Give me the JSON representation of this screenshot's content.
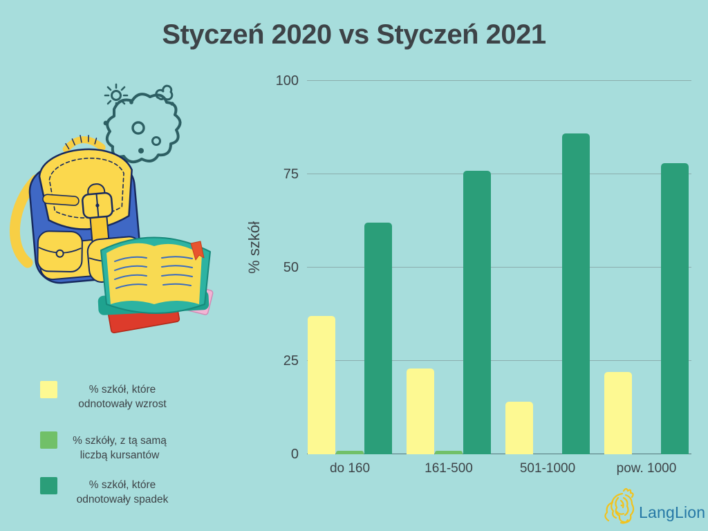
{
  "title": "Styczeń 2020 vs Styczeń 2021",
  "chart_data": {
    "type": "bar",
    "title": "Styczeń 2020 vs Styczeń 2021",
    "categories": [
      "do 160",
      "161-500",
      "501-1000",
      "pow. 1000"
    ],
    "series": [
      {
        "name": "% szkół, które odnotowały wzrost",
        "color": "#fdf992",
        "values": [
          37,
          23,
          14,
          22
        ]
      },
      {
        "name": "% szkóły, z tą samą liczbą kursantów",
        "color": "#71c068",
        "values": [
          1,
          1,
          0,
          0
        ]
      },
      {
        "name": "% szkół, które odnotowały spadek",
        "color": "#2b9e79",
        "values": [
          62,
          76,
          86,
          78
        ]
      }
    ],
    "xlabel": "",
    "ylabel": "% szkół",
    "ylim": [
      0,
      100
    ],
    "yticks": [
      0,
      25,
      50,
      75,
      100
    ],
    "grid": true,
    "legend_position": "bottom-left"
  },
  "legend": {
    "items": [
      {
        "color": "#fdf992",
        "lines": [
          "% szkół, które",
          "odnotowały wzrost"
        ]
      },
      {
        "color": "#71c068",
        "lines": [
          "% szkóły, z tą samą",
          "liczbą kursantów"
        ]
      },
      {
        "color": "#2b9e79",
        "lines": [
          "% szkół, które",
          "odnotowały spadek"
        ]
      }
    ]
  },
  "logo": {
    "text": "LangLion",
    "text_color": "#2577a5",
    "lion_color": "#f2c21c"
  },
  "icons": {
    "virus": "virus-doodle-icon",
    "backpack": "backpack-icon",
    "books": "books-icon",
    "lion": "langlion-lion-icon"
  },
  "colors": {
    "background": "#a7dddc",
    "text": "#3d4347",
    "gridline": "#8badad",
    "axis_line": "#54787a"
  }
}
